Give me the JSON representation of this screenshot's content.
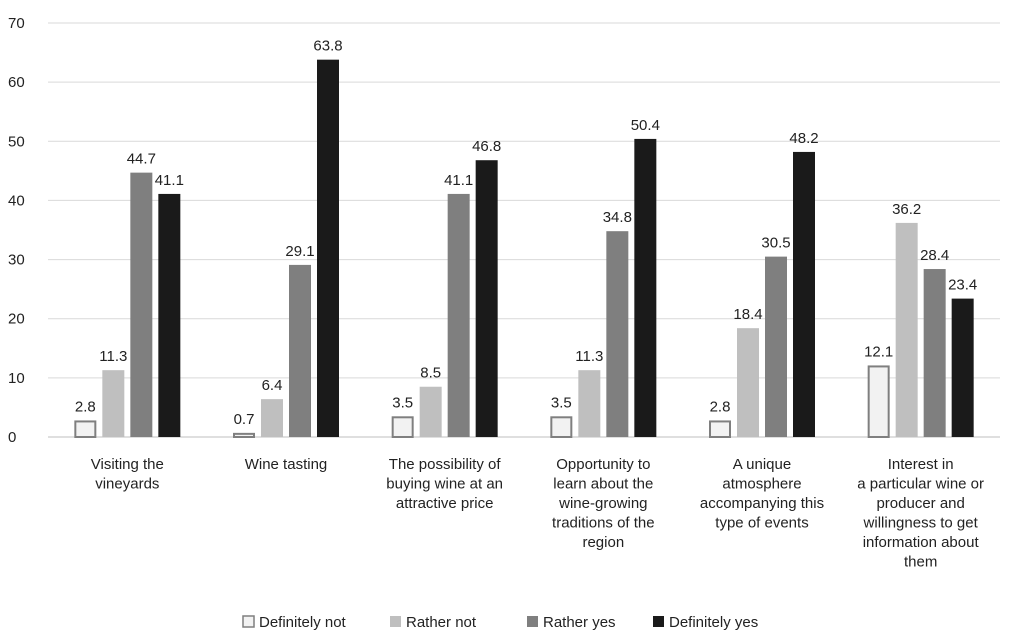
{
  "chart_data": {
    "type": "bar",
    "categories": [
      [
        "Visiting the",
        "vineyards"
      ],
      [
        "Wine tasting"
      ],
      [
        "The possibility of",
        "buying wine at an",
        "attractive price"
      ],
      [
        "Opportunity to",
        "learn about the",
        "wine-growing",
        "traditions of the",
        "region"
      ],
      [
        "A unique",
        "atmosphere",
        "accompanying this",
        "type of events"
      ],
      [
        "Interest in",
        "a particular wine or",
        "producer and",
        "willingness to get",
        "information about",
        "them"
      ]
    ],
    "series": [
      {
        "name": "Definitely not",
        "color": "#f2f2f2",
        "stroke": "#7f7f7f",
        "values": [
          2.8,
          0.7,
          3.5,
          3.5,
          2.8,
          12.1
        ]
      },
      {
        "name": "Rather not",
        "color": "#bfbfbf",
        "stroke": "none",
        "values": [
          11.3,
          6.4,
          8.5,
          11.3,
          18.4,
          36.2
        ]
      },
      {
        "name": "Rather yes",
        "color": "#7f7f7f",
        "stroke": "none",
        "values": [
          44.7,
          29.1,
          41.1,
          34.8,
          30.5,
          28.4
        ]
      },
      {
        "name": "Definitely yes",
        "color": "#1a1a1a",
        "stroke": "none",
        "values": [
          41.1,
          63.8,
          46.8,
          50.4,
          48.2,
          23.4
        ]
      }
    ],
    "value_labels": [
      [
        "2.8",
        "0.7",
        "3.5",
        "3.5",
        "2.8",
        "12.1"
      ],
      [
        "11.3",
        "6.4",
        "8.5",
        "11.3",
        "18.4",
        "36.2"
      ],
      [
        "44.7",
        "29.1",
        "41.1",
        "34.8",
        "30.5",
        "28.4"
      ],
      [
        "41.1",
        "63.8",
        "46.8",
        "50.4",
        "48.2",
        "23.4"
      ]
    ],
    "y_ticks": [
      "0",
      "10",
      "20",
      "30",
      "40",
      "50",
      "60",
      "70"
    ],
    "ylim": [
      0,
      70
    ],
    "grid": true,
    "legend": "bottom",
    "title": "",
    "xlabel": "",
    "ylabel": ""
  }
}
